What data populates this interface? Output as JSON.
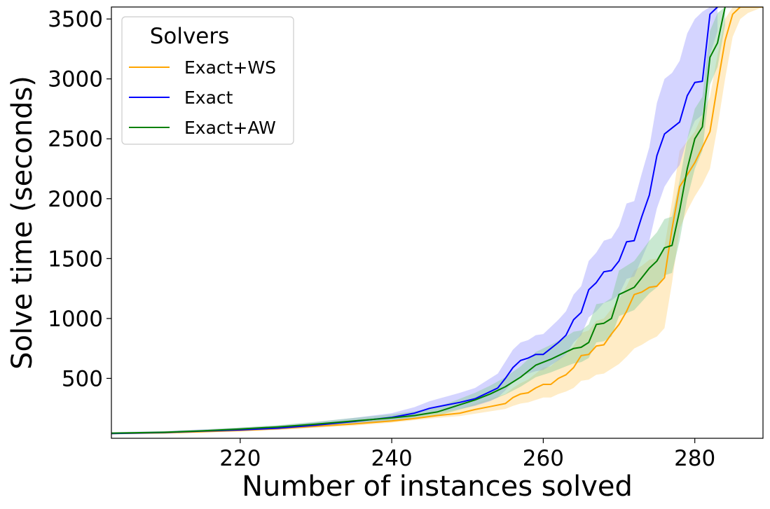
{
  "chart_data": {
    "type": "line",
    "xlabel": "Number of instances solved",
    "ylabel": "Solve time (seconds)",
    "xlim": [
      203,
      289
    ],
    "ylim": [
      0,
      3600
    ],
    "xticks": [
      220,
      240,
      260,
      280
    ],
    "yticks": [
      500,
      1000,
      1500,
      2000,
      2500,
      3000,
      3500
    ],
    "grid": false,
    "legend": {
      "title": "Solvers",
      "position": "top-left"
    },
    "series": [
      {
        "name": "Exact+WS",
        "color": "#FFA500",
        "band_color": "#FFD580",
        "x": [
          203,
          210,
          215,
          220,
          225,
          230,
          235,
          240,
          243,
          246,
          249,
          251,
          253,
          255,
          256,
          257,
          258,
          259,
          260,
          261,
          262,
          263,
          264,
          265,
          266,
          267,
          268,
          269,
          270,
          271,
          272,
          273,
          274,
          275,
          276,
          277,
          278,
          279,
          280,
          281,
          282,
          283,
          284,
          285,
          286,
          287,
          289
        ],
        "y": [
          40,
          45,
          55,
          65,
          80,
          100,
          120,
          145,
          165,
          190,
          210,
          240,
          265,
          290,
          340,
          370,
          380,
          420,
          450,
          450,
          500,
          530,
          590,
          690,
          700,
          770,
          780,
          870,
          950,
          1060,
          1200,
          1220,
          1260,
          1270,
          1340,
          1750,
          2100,
          2200,
          2300,
          2430,
          2560,
          2950,
          3320,
          3540,
          3600,
          3600,
          3600
        ],
        "lower": [
          35,
          40,
          48,
          58,
          70,
          88,
          105,
          130,
          150,
          170,
          185,
          205,
          225,
          245,
          270,
          290,
          300,
          320,
          340,
          340,
          370,
          390,
          420,
          480,
          490,
          530,
          540,
          580,
          620,
          680,
          750,
          780,
          820,
          850,
          920,
          1300,
          1750,
          1900,
          2020,
          2120,
          2250,
          2600,
          3000,
          3350,
          3500,
          3550,
          3600
        ],
        "upper": [
          50,
          55,
          65,
          78,
          95,
          118,
          140,
          165,
          190,
          220,
          245,
          290,
          330,
          370,
          420,
          460,
          490,
          540,
          590,
          600,
          660,
          700,
          770,
          880,
          900,
          980,
          1000,
          1080,
          1160,
          1270,
          1400,
          1440,
          1490,
          1500,
          1600,
          1980,
          2400,
          2480,
          2560,
          2700,
          2850,
          3200,
          3500,
          3600,
          3600,
          3600,
          3600
        ]
      },
      {
        "name": "Exact",
        "color": "#0000FF",
        "band_color": "#A0A0FF",
        "x": [
          203,
          210,
          215,
          220,
          225,
          230,
          235,
          240,
          243,
          245,
          247,
          249,
          251,
          253,
          254,
          255,
          256,
          257,
          258,
          259,
          260,
          261,
          262,
          263,
          264,
          265,
          266,
          267,
          268,
          269,
          270,
          271,
          272,
          273,
          274,
          275,
          276,
          277,
          278,
          279,
          280,
          281,
          282,
          283
        ],
        "y": [
          40,
          48,
          60,
          70,
          85,
          110,
          140,
          175,
          210,
          250,
          275,
          300,
          330,
          390,
          420,
          500,
          590,
          650,
          670,
          700,
          700,
          750,
          800,
          860,
          990,
          1050,
          1240,
          1300,
          1390,
          1400,
          1480,
          1640,
          1650,
          1850,
          2030,
          2360,
          2540,
          2590,
          2640,
          2860,
          2970,
          2980,
          3540,
          3600
        ],
        "lower": [
          35,
          42,
          52,
          60,
          72,
          92,
          115,
          145,
          175,
          205,
          225,
          245,
          270,
          310,
          340,
          400,
          470,
          520,
          540,
          560,
          570,
          610,
          650,
          700,
          800,
          860,
          1010,
          1060,
          1130,
          1150,
          1200,
          1330,
          1350,
          1500,
          1650,
          1920,
          2100,
          2200,
          2280,
          2500,
          2650,
          2700,
          3200,
          3400
        ],
        "upper": [
          52,
          60,
          75,
          88,
          105,
          135,
          170,
          210,
          260,
          310,
          345,
          380,
          420,
          500,
          540,
          640,
          740,
          800,
          820,
          860,
          870,
          930,
          990,
          1060,
          1200,
          1270,
          1480,
          1550,
          1650,
          1670,
          1770,
          1960,
          1980,
          2210,
          2430,
          2800,
          3000,
          3050,
          3150,
          3380,
          3500,
          3560,
          3600,
          3600
        ]
      },
      {
        "name": "Exact+AW",
        "color": "#008000",
        "band_color": "#88CC99",
        "x": [
          203,
          210,
          215,
          220,
          225,
          230,
          235,
          240,
          243,
          246,
          249,
          251,
          253,
          255,
          257,
          259,
          261,
          263,
          264,
          265,
          266,
          267,
          268,
          269,
          270,
          272,
          274,
          275,
          276,
          277,
          278,
          279,
          280,
          281,
          282,
          283,
          284
        ],
        "y": [
          42,
          50,
          62,
          78,
          95,
          118,
          145,
          170,
          190,
          220,
          280,
          320,
          370,
          430,
          510,
          610,
          660,
          720,
          750,
          760,
          800,
          950,
          960,
          1000,
          1200,
          1260,
          1420,
          1480,
          1590,
          1610,
          1900,
          2250,
          2500,
          2600,
          3180,
          3300,
          3600
        ],
        "lower": [
          36,
          44,
          54,
          68,
          82,
          100,
          123,
          145,
          162,
          188,
          240,
          275,
          315,
          365,
          430,
          510,
          550,
          600,
          625,
          635,
          670,
          800,
          810,
          850,
          1020,
          1070,
          1210,
          1260,
          1360,
          1380,
          1650,
          2000,
          2250,
          2400,
          2950,
          3100,
          3450
        ],
        "upper": [
          50,
          58,
          72,
          90,
          110,
          138,
          170,
          200,
          225,
          260,
          330,
          380,
          440,
          510,
          600,
          720,
          780,
          850,
          890,
          900,
          950,
          1120,
          1130,
          1170,
          1400,
          1480,
          1650,
          1720,
          1830,
          1850,
          2150,
          2500,
          2750,
          2850,
          3400,
          3550,
          3600
        ]
      }
    ]
  }
}
